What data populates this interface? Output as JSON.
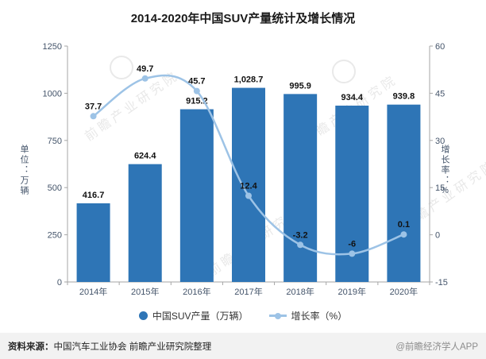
{
  "title": "2014-2020年中国SUV产量统计及增长情况",
  "chart_data": {
    "type": "bar",
    "subtype": "bar+line combo",
    "categories": [
      "2014年",
      "2015年",
      "2016年",
      "2017年",
      "2018年",
      "2019年",
      "2020年"
    ],
    "series": [
      {
        "name": "中国SUV产量（万辆）",
        "type": "bar",
        "axis": "left",
        "color": "#2e75b6",
        "values": [
          416.7,
          624.4,
          915.2,
          1028.7,
          995.9,
          934.4,
          939.8
        ],
        "labels": [
          "416.7",
          "624.4",
          "915.2",
          "1,028.7",
          "995.9",
          "934.4",
          "939.8"
        ]
      },
      {
        "name": "增长率（%）",
        "type": "line",
        "axis": "right",
        "color": "#9dc3e6",
        "values": [
          37.7,
          49.7,
          45.7,
          12.4,
          -3.2,
          -6,
          0.1
        ],
        "labels": [
          "37.7",
          "49.7",
          "45.7",
          "12.4",
          "-3.2",
          "-6",
          "0.1"
        ]
      }
    ],
    "left_axis": {
      "label": "单位：万辆",
      "min": 0,
      "max": 1250,
      "ticks": [
        0,
        250,
        500,
        750,
        1000,
        1250
      ]
    },
    "right_axis": {
      "label": "增长率：%",
      "min": -15,
      "max": 60,
      "ticks": [
        -15,
        0,
        15,
        30,
        45,
        60
      ]
    },
    "grid": false,
    "legend_position": "bottom"
  },
  "legend": {
    "items": [
      {
        "label": "中国SUV产量（万辆）",
        "marker": "circle",
        "color": "#2e75b6"
      },
      {
        "label": "增长率（%）",
        "marker": "line-dot",
        "color": "#9dc3e6"
      }
    ]
  },
  "footer": {
    "source_prefix": "资料来源：",
    "source_text": "中国汽车工业协会 前瞻产业研究院整理",
    "credit": "@前瞻经济学人APP"
  },
  "watermark": {
    "text": "前瞻产业研究院"
  },
  "colors": {
    "bar": "#2e75b6",
    "line": "#9dc3e6",
    "axis_text": "#44546a",
    "axis_line": "#a6a6a6",
    "data_label": "#111111"
  }
}
